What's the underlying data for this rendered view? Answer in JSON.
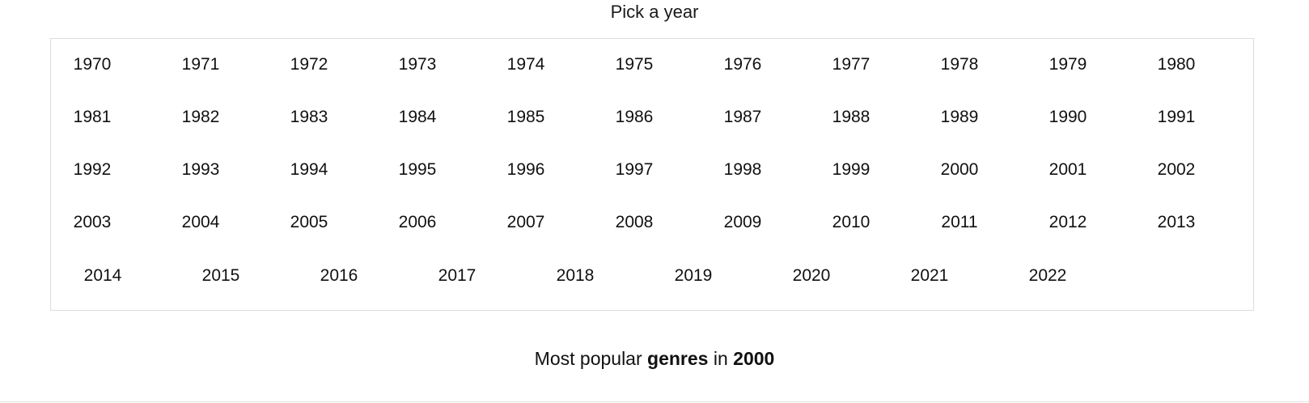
{
  "header": {
    "title": "Pick a year"
  },
  "year_picker": {
    "rows": [
      [
        "1970",
        "1971",
        "1972",
        "1973",
        "1974",
        "1975",
        "1976",
        "1977",
        "1978",
        "1979",
        "1980"
      ],
      [
        "1981",
        "1982",
        "1983",
        "1984",
        "1985",
        "1986",
        "1987",
        "1988",
        "1989",
        "1990",
        "1991"
      ],
      [
        "1992",
        "1993",
        "1994",
        "1995",
        "1996",
        "1997",
        "1998",
        "1999",
        "2000",
        "2001",
        "2002"
      ],
      [
        "2003",
        "2004",
        "2005",
        "2006",
        "2007",
        "2008",
        "2009",
        "2010",
        "2011",
        "2012",
        "2013"
      ],
      [
        "2014",
        "2015",
        "2016",
        "2017",
        "2018",
        "2019",
        "2020",
        "2021",
        "2022"
      ]
    ]
  },
  "genres_section": {
    "prefix": "Most popular ",
    "keyword": "genres",
    "connector": " in ",
    "year": "2000"
  }
}
